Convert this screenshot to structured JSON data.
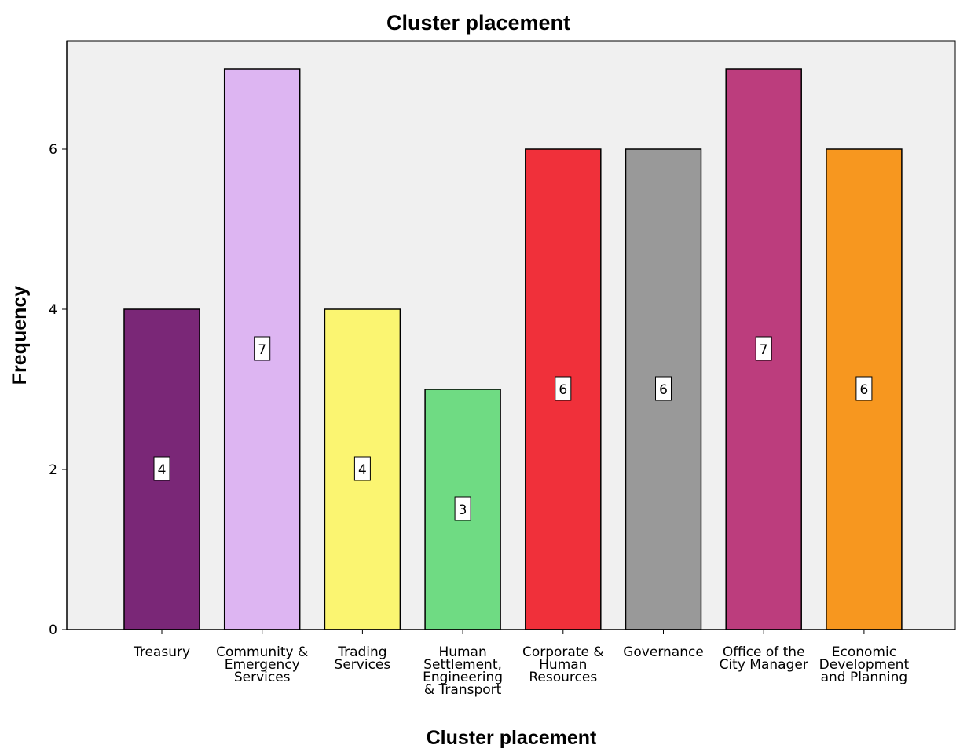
{
  "chart_data": {
    "type": "bar",
    "title": "Cluster placement",
    "xlabel": "Cluster placement",
    "ylabel": "Frequency",
    "ylim": [
      0,
      7.4
    ],
    "yticks": [
      0,
      2,
      4,
      6
    ],
    "grid": false,
    "legend": "none",
    "categories": [
      [
        "Treasury"
      ],
      [
        "Community &",
        "Emergency",
        "Services"
      ],
      [
        "Trading",
        "Services"
      ],
      [
        "Human",
        "Settlement,",
        "Engineering",
        "& Transport"
      ],
      [
        "Corporate &",
        "Human",
        "Resources"
      ],
      [
        "Governance"
      ],
      [
        "Office of the",
        "City Manager"
      ],
      [
        "Economic",
        "Development",
        "and Planning"
      ]
    ],
    "values": [
      4,
      7,
      4,
      3,
      6,
      6,
      7,
      6
    ],
    "colors": [
      "#7a2777",
      "#ddb5f2",
      "#fbf571",
      "#6fdb83",
      "#f0303a",
      "#999999",
      "#bc3d7d",
      "#f7971f"
    ],
    "plot_background": "#f0f0f0"
  }
}
